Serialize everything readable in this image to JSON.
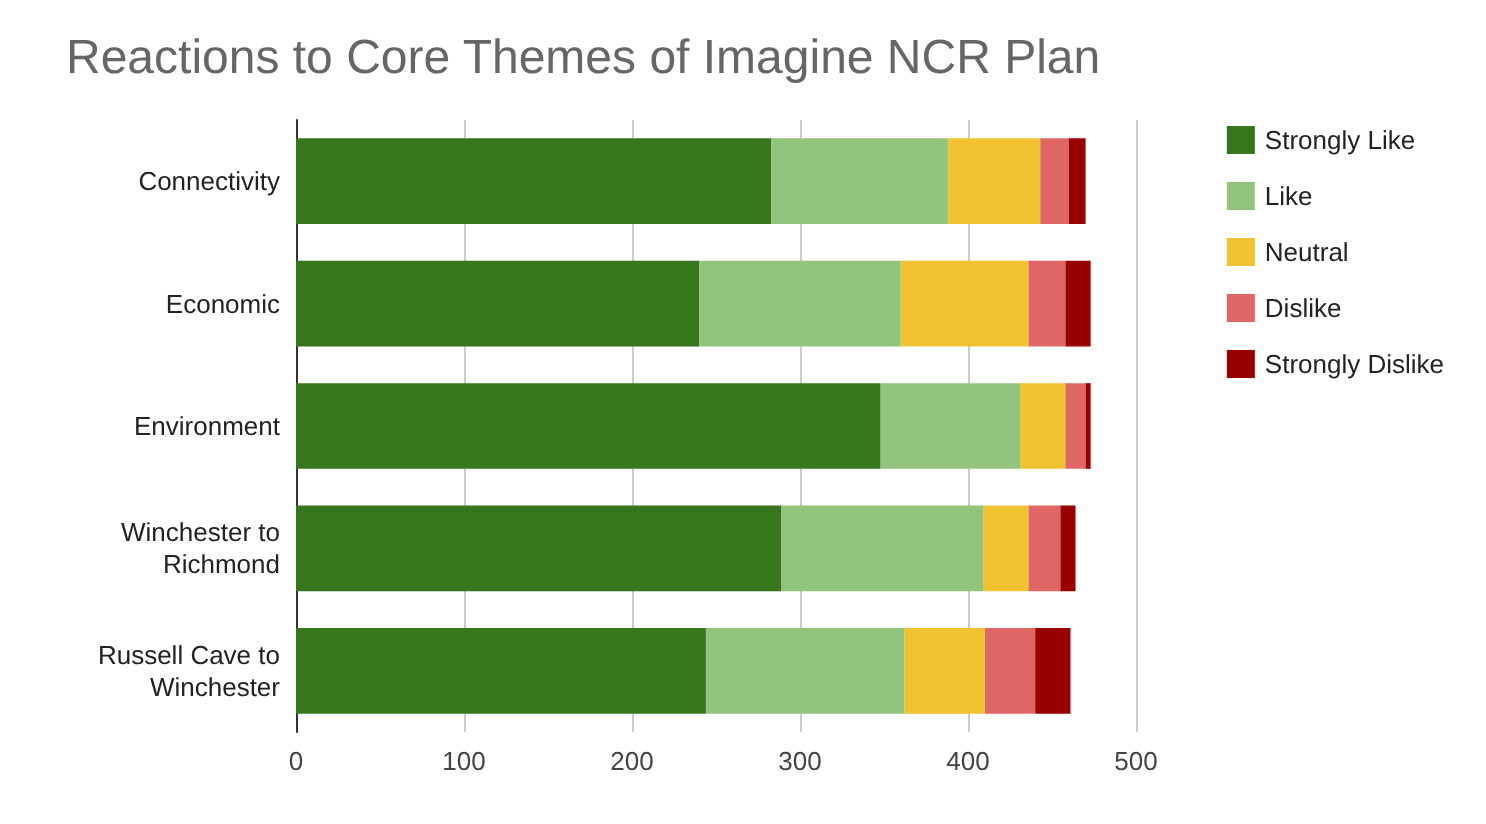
{
  "chart_data": {
    "type": "bar",
    "orientation": "horizontal",
    "stacked": true,
    "title": "Reactions to Core Themes of Imagine NCR Plan",
    "categories": [
      "Connectivity",
      "Economic",
      "Environment",
      "Winchester to\nRichmond",
      "Russell Cave to\nWinchester"
    ],
    "series": [
      {
        "name": "Strongly Like",
        "color": "#38761d",
        "values": [
          283,
          240,
          348,
          289,
          244
        ]
      },
      {
        "name": "Like",
        "color": "#93c47d",
        "values": [
          105,
          120,
          83,
          120,
          118
        ]
      },
      {
        "name": "Neutral",
        "color": "#f1c232",
        "values": [
          55,
          76,
          27,
          27,
          48
        ]
      },
      {
        "name": "Dislike",
        "color": "#e06666",
        "values": [
          17,
          22,
          12,
          19,
          30
        ]
      },
      {
        "name": "Strongly Dislike",
        "color": "#990000",
        "values": [
          10,
          15,
          3,
          9,
          21
        ]
      }
    ],
    "xlim": [
      0,
      500
    ],
    "xticks": [
      0,
      100,
      200,
      300,
      400,
      500
    ],
    "grid": "x",
    "legend": "top right"
  }
}
